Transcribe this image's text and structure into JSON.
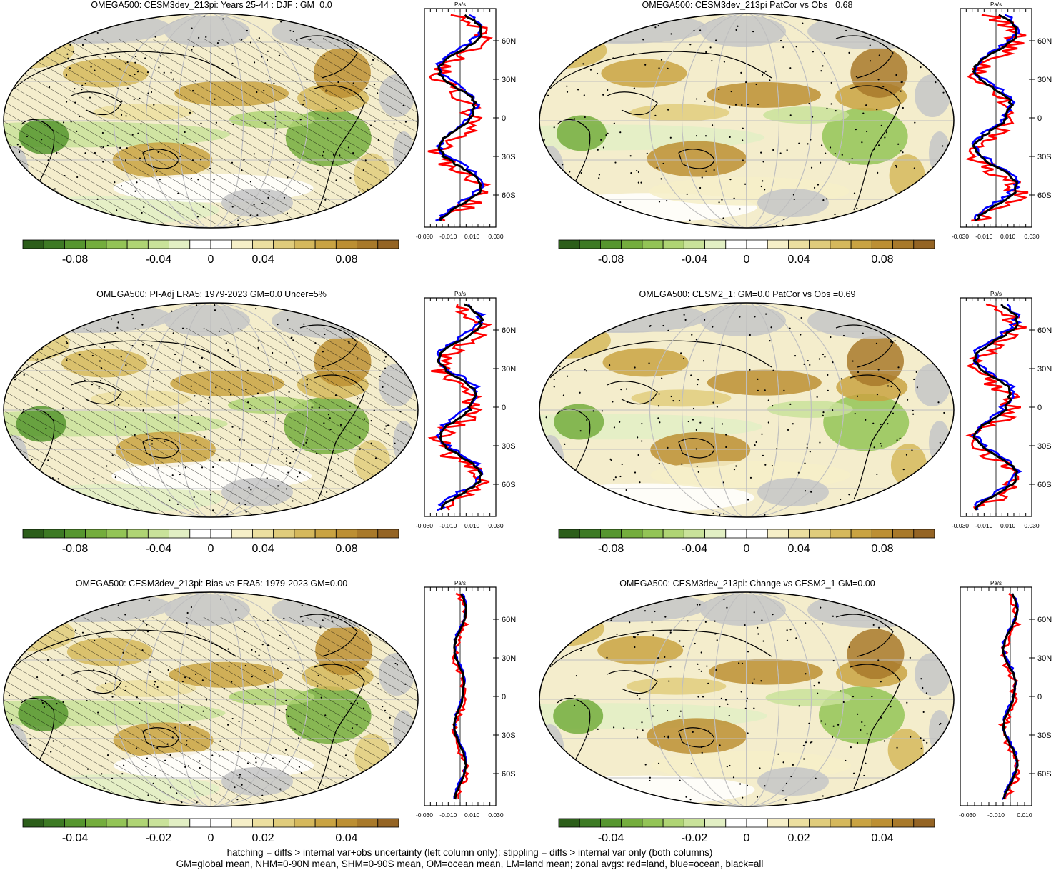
{
  "panels": [
    {
      "id": "top-left",
      "title": "OMEGA500: CESM3dev_213pi: Years 25-44 : DJF : GM=0.0",
      "hatching": true,
      "colorbar_ticks": [
        "-0.08",
        "-0.04",
        "0",
        "0.04",
        "0.08"
      ],
      "zonal": {
        "units": "Pa/s",
        "lat_ticks": [
          "60N",
          "30N",
          "0",
          "30S",
          "60S"
        ],
        "x_ticks": [
          "-0.030",
          "-0.010",
          "0.010",
          "0.030"
        ]
      }
    },
    {
      "id": "top-right",
      "title": "OMEGA500: CESM3dev_213pi PatCor vs Obs =0.68",
      "hatching": false,
      "colorbar_ticks": [
        "-0.08",
        "-0.04",
        "0",
        "0.04",
        "0.08"
      ],
      "zonal": {
        "units": "Pa/s",
        "lat_ticks": [
          "60N",
          "30N",
          "0",
          "30S",
          "60S"
        ],
        "x_ticks": [
          "-0.030",
          "-0.010",
          "0.010",
          "0.030"
        ]
      }
    },
    {
      "id": "middle-left",
      "title": "OMEGA500: PI-Adj ERA5: 1979-2023 GM=0.0 Uncer=5%",
      "hatching": true,
      "colorbar_ticks": [
        "-0.08",
        "-0.04",
        "0",
        "0.04",
        "0.08"
      ],
      "zonal": {
        "units": "Pa/s",
        "lat_ticks": [
          "60N",
          "30N",
          "0",
          "30S",
          "60S"
        ],
        "x_ticks": [
          "-0.030",
          "-0.010",
          "0.010",
          "0.030"
        ]
      }
    },
    {
      "id": "middle-right",
      "title": "OMEGA500: CESM2_1: GM=0.0 PatCor vs Obs =0.69",
      "hatching": false,
      "colorbar_ticks": [
        "-0.08",
        "-0.04",
        "0",
        "0.04",
        "0.08"
      ],
      "zonal": {
        "units": "Pa/s",
        "lat_ticks": [
          "60N",
          "30N",
          "0",
          "30S",
          "60S"
        ],
        "x_ticks": [
          "-0.030",
          "-0.010",
          "0.010",
          "0.030"
        ]
      }
    },
    {
      "id": "bottom-left",
      "title": "OMEGA500: CESM3dev_213pi: Bias vs ERA5: 1979-2023 GM=0.00",
      "hatching": true,
      "colorbar_ticks": [
        "-0.04",
        "-0.02",
        "0",
        "0.02",
        "0.04"
      ],
      "zonal": {
        "units": "Pa/s",
        "lat_ticks": [
          "60N",
          "30N",
          "0",
          "30S",
          "60S"
        ],
        "x_ticks": [
          "-0.030",
          "-0.010",
          "0.010",
          "0.030"
        ]
      }
    },
    {
      "id": "bottom-right",
      "title": "OMEGA500: CESM3dev_213pi: Change vs CESM2_1 GM=0.00",
      "hatching": false,
      "colorbar_ticks": [
        "-0.04",
        "-0.02",
        "0",
        "0.02",
        "0.04"
      ],
      "zonal": {
        "units": "Pa/s",
        "lat_ticks": [
          "60N",
          "30N",
          "0",
          "30S",
          "60S"
        ],
        "x_ticks": [
          "-0.030",
          "-0.010",
          "0.010"
        ]
      }
    }
  ],
  "colorbar_colors": [
    "#2c5e1a",
    "#3d7a24",
    "#56962f",
    "#74ad3d",
    "#93c456",
    "#afd474",
    "#c9e29a",
    "#e2efc4",
    "#ffffff",
    "#ffffff",
    "#f6efc8",
    "#ecdfa0",
    "#e0cc7c",
    "#d5b85c",
    "#c9a342",
    "#bc8f33",
    "#a8792a",
    "#946424"
  ],
  "series_colors": {
    "land": "#ff0000",
    "ocean": "#0000ff",
    "all": "#000000"
  },
  "legend_words": [
    "red=land",
    "blue=ocean",
    "black=all"
  ],
  "footer": {
    "line1": "hatching = diffs > internal var+obs uncertainty (left column only); stippling = diffs > internal var only (both columns)",
    "line2": "GM=global mean, NHM=0-90N mean, SHM=0-90S mean, OM=ocean mean, LM=land mean; zonal avgs: red=land, blue=ocean, black=all"
  }
}
